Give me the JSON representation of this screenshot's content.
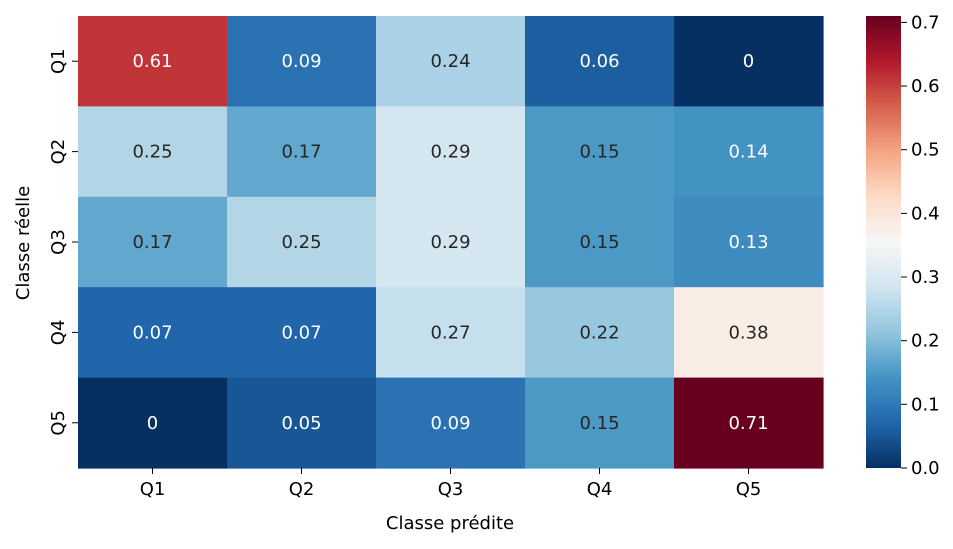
{
  "chart_data": {
    "type": "heatmap",
    "title": "",
    "xlabel": "Classe prédite",
    "ylabel": "Classe réelle",
    "x_categories": [
      "Q1",
      "Q2",
      "Q3",
      "Q4",
      "Q5"
    ],
    "y_categories": [
      "Q1",
      "Q2",
      "Q3",
      "Q4",
      "Q5"
    ],
    "values": [
      [
        0.61,
        0.09,
        0.24,
        0.06,
        0
      ],
      [
        0.25,
        0.17,
        0.29,
        0.15,
        0.14
      ],
      [
        0.17,
        0.25,
        0.29,
        0.15,
        0.13
      ],
      [
        0.07,
        0.07,
        0.27,
        0.22,
        0.38
      ],
      [
        0,
        0.05,
        0.09,
        0.15,
        0.71
      ]
    ],
    "value_labels": [
      [
        "0.61",
        "0.09",
        "0.24",
        "0.06",
        "0"
      ],
      [
        "0.25",
        "0.17",
        "0.29",
        "0.15",
        "0.14"
      ],
      [
        "0.17",
        "0.25",
        "0.29",
        "0.15",
        "0.13"
      ],
      [
        "0.07",
        "0.07",
        "0.27",
        "0.22",
        "0.38"
      ],
      [
        "0",
        "0.05",
        "0.09",
        "0.15",
        "0.71"
      ]
    ],
    "colormap": "RdBu_r",
    "vmin": 0,
    "vmax": 0.71,
    "colorbar_ticks": [
      "0.0",
      "0.1",
      "0.2",
      "0.3",
      "0.4",
      "0.5",
      "0.6",
      "0.7"
    ],
    "grid": false,
    "legend": "colorbar-right"
  }
}
